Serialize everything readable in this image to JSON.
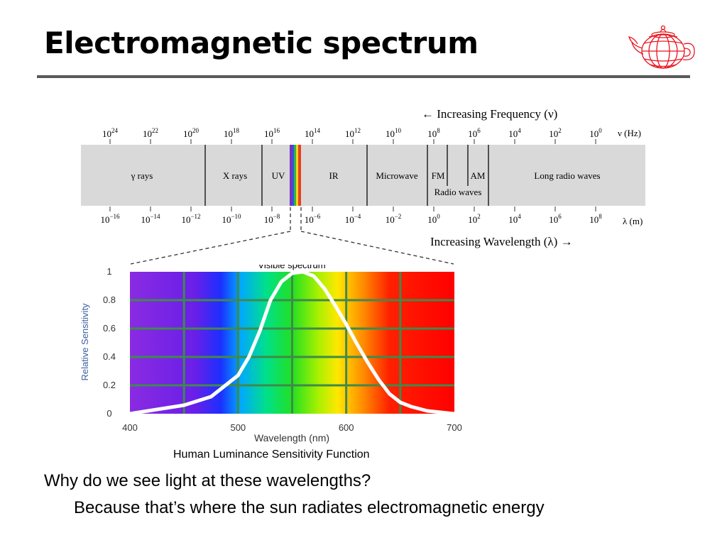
{
  "slide": {
    "title": "Electromagnetic spectrum",
    "caption": "Human Luminance Sensitivity Function",
    "question": "Why do we see light at these wavelengths?",
    "answer": "Because that’s where the sun radiates electromagnetic energy",
    "logo_icon": "wireframe-teapot-icon",
    "logo_color": "#e8141f"
  },
  "spectrum": {
    "freq_caption": "← Increasing Frequency (ν)",
    "wave_caption": "Increasing Wavelength (λ) →",
    "freq_unit": "ν (Hz)",
    "wave_unit": "λ (m)",
    "freq_ticks": [
      {
        "base": "10",
        "exp": "24"
      },
      {
        "base": "10",
        "exp": "22"
      },
      {
        "base": "10",
        "exp": "20"
      },
      {
        "base": "10",
        "exp": "18"
      },
      {
        "base": "10",
        "exp": "16"
      },
      {
        "base": "10",
        "exp": "14"
      },
      {
        "base": "10",
        "exp": "12"
      },
      {
        "base": "10",
        "exp": "10"
      },
      {
        "base": "10",
        "exp": "8"
      },
      {
        "base": "10",
        "exp": "6"
      },
      {
        "base": "10",
        "exp": "4"
      },
      {
        "base": "10",
        "exp": "2"
      },
      {
        "base": "10",
        "exp": "0"
      }
    ],
    "wave_ticks": [
      {
        "base": "10",
        "exp": "−16"
      },
      {
        "base": "10",
        "exp": "−14"
      },
      {
        "base": "10",
        "exp": "−12"
      },
      {
        "base": "10",
        "exp": "−10"
      },
      {
        "base": "10",
        "exp": "−8"
      },
      {
        "base": "10",
        "exp": "−6"
      },
      {
        "base": "10",
        "exp": "−4"
      },
      {
        "base": "10",
        "exp": "−2"
      },
      {
        "base": "10",
        "exp": "0"
      },
      {
        "base": "10",
        "exp": "2"
      },
      {
        "base": "10",
        "exp": "4"
      },
      {
        "base": "10",
        "exp": "6"
      },
      {
        "base": "10",
        "exp": "8"
      }
    ],
    "bands": [
      "γ rays",
      "X rays",
      "UV",
      "IR",
      "Microwave",
      "FM",
      "AM",
      "Long radio waves"
    ],
    "radio_label": "Radio waves",
    "band_color": "#d9d9d9"
  },
  "chart_data": {
    "type": "line",
    "title": "Visible spectrum",
    "xlabel": "Wavelength (nm)",
    "ylabel": "Relative Sensitivity",
    "xlim": [
      400,
      700
    ],
    "ylim": [
      0,
      1
    ],
    "x_ticks": [
      "400",
      "500",
      "600",
      "700"
    ],
    "y_ticks": [
      "0",
      "0.2",
      "0.4",
      "0.6",
      "0.8",
      "1"
    ],
    "grid": true,
    "series": [
      {
        "x": [
          400,
          425,
          450,
          475,
          500,
          510,
          520,
          530,
          540,
          550,
          560,
          570,
          580,
          590,
          600,
          610,
          620,
          630,
          640,
          650,
          660,
          675,
          700
        ],
        "y": [
          0.0,
          0.03,
          0.06,
          0.12,
          0.27,
          0.4,
          0.58,
          0.8,
          0.93,
          0.99,
          1.0,
          0.97,
          0.88,
          0.76,
          0.63,
          0.49,
          0.36,
          0.24,
          0.14,
          0.08,
          0.05,
          0.02,
          0.0
        ],
        "color": "#ffffff"
      }
    ]
  }
}
